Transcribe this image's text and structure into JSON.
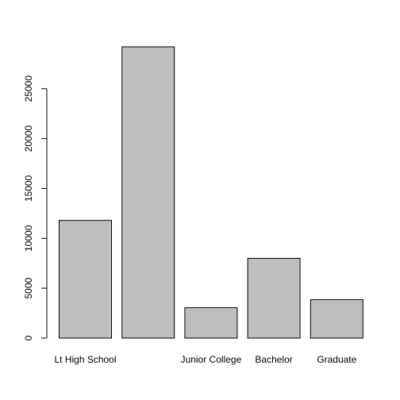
{
  "chart_data": {
    "type": "bar",
    "categories": [
      "Lt High School",
      "",
      "Junior College",
      "Bachelor",
      "Graduate"
    ],
    "values": [
      11800,
      29200,
      3050,
      8000,
      3850
    ],
    "ylim": [
      0,
      29200
    ],
    "yticks": [
      0,
      5000,
      10000,
      15000,
      20000,
      25000
    ],
    "ytick_labels": [
      "0",
      "5000",
      "10000",
      "15000",
      "20000",
      "25000"
    ],
    "bar_color": "#bebebe",
    "grid": false,
    "legend": "none"
  }
}
